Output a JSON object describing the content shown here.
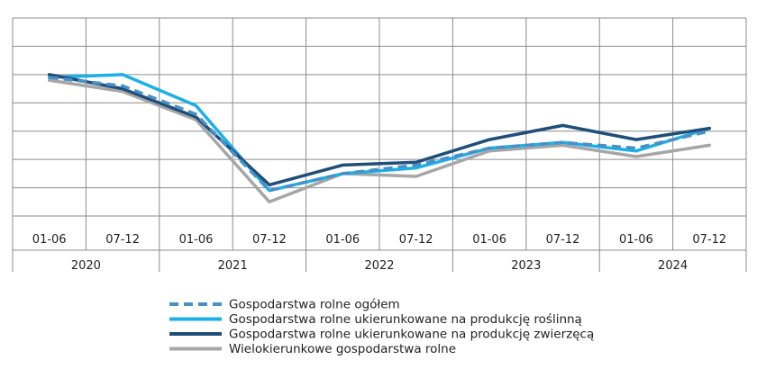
{
  "chart_data": {
    "type": "line",
    "title": "",
    "xlabel": "",
    "ylabel": "",
    "ylim": [
      0,
      7
    ],
    "grid": true,
    "legend_position": "bottom-center",
    "categories": [
      "01-06",
      "07-12",
      "01-06",
      "07-12",
      "01-06",
      "07-12",
      "01-06",
      "07-12",
      "01-06",
      "07-12"
    ],
    "years": [
      "2020",
      "2021",
      "2022",
      "2023",
      "2024"
    ],
    "series": [
      {
        "name": "Gospodarstwa rolne ogółem",
        "color": "#4a90c8",
        "style": "dashed",
        "values": [
          4.9,
          4.6,
          3.6,
          0.9,
          1.5,
          1.8,
          2.4,
          2.6,
          2.4,
          3.0
        ]
      },
      {
        "name": "Gospodarstwa rolne ukierunkowane na produkcję roślinną",
        "color": "#1ab0e8",
        "style": "solid",
        "values": [
          4.9,
          5.0,
          3.9,
          0.9,
          1.5,
          1.7,
          2.4,
          2.6,
          2.3,
          3.1
        ]
      },
      {
        "name": "Gospodarstwa rolne ukierunkowane na produkcję zwierzęcą",
        "color": "#1f4e79",
        "style": "solid",
        "values": [
          5.0,
          4.5,
          3.5,
          1.1,
          1.8,
          1.9,
          2.7,
          3.2,
          2.7,
          3.1
        ]
      },
      {
        "name": "Wielokierunkowe gospodarstwa rolne",
        "color": "#a6a6a6",
        "style": "solid",
        "values": [
          4.8,
          4.4,
          3.4,
          0.5,
          1.5,
          1.4,
          2.3,
          2.5,
          2.1,
          2.5
        ]
      }
    ]
  }
}
